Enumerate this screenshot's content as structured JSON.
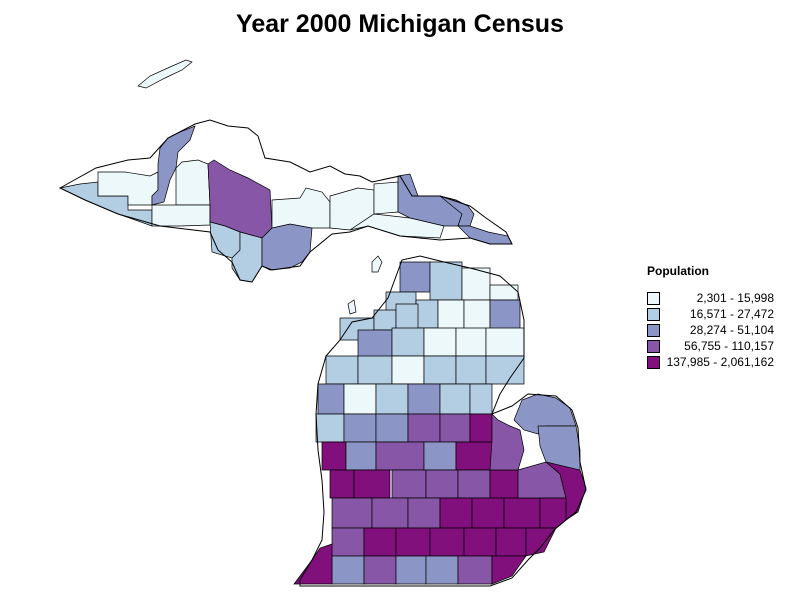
{
  "title": "Year 2000 Michigan Census",
  "legend": {
    "title": "Population",
    "classes": [
      {
        "label": "2,301 - 15,998",
        "color": "#edf8fb"
      },
      {
        "label": "16,571 - 27,472",
        "color": "#b3cde3"
      },
      {
        "label": "28,274 - 51,104",
        "color": "#8c96c6"
      },
      {
        "label": "56,755 - 110,157",
        "color": "#8856a7"
      },
      {
        "label": "137,985 - 2,061,162",
        "color": "#810f7c"
      }
    ]
  }
}
